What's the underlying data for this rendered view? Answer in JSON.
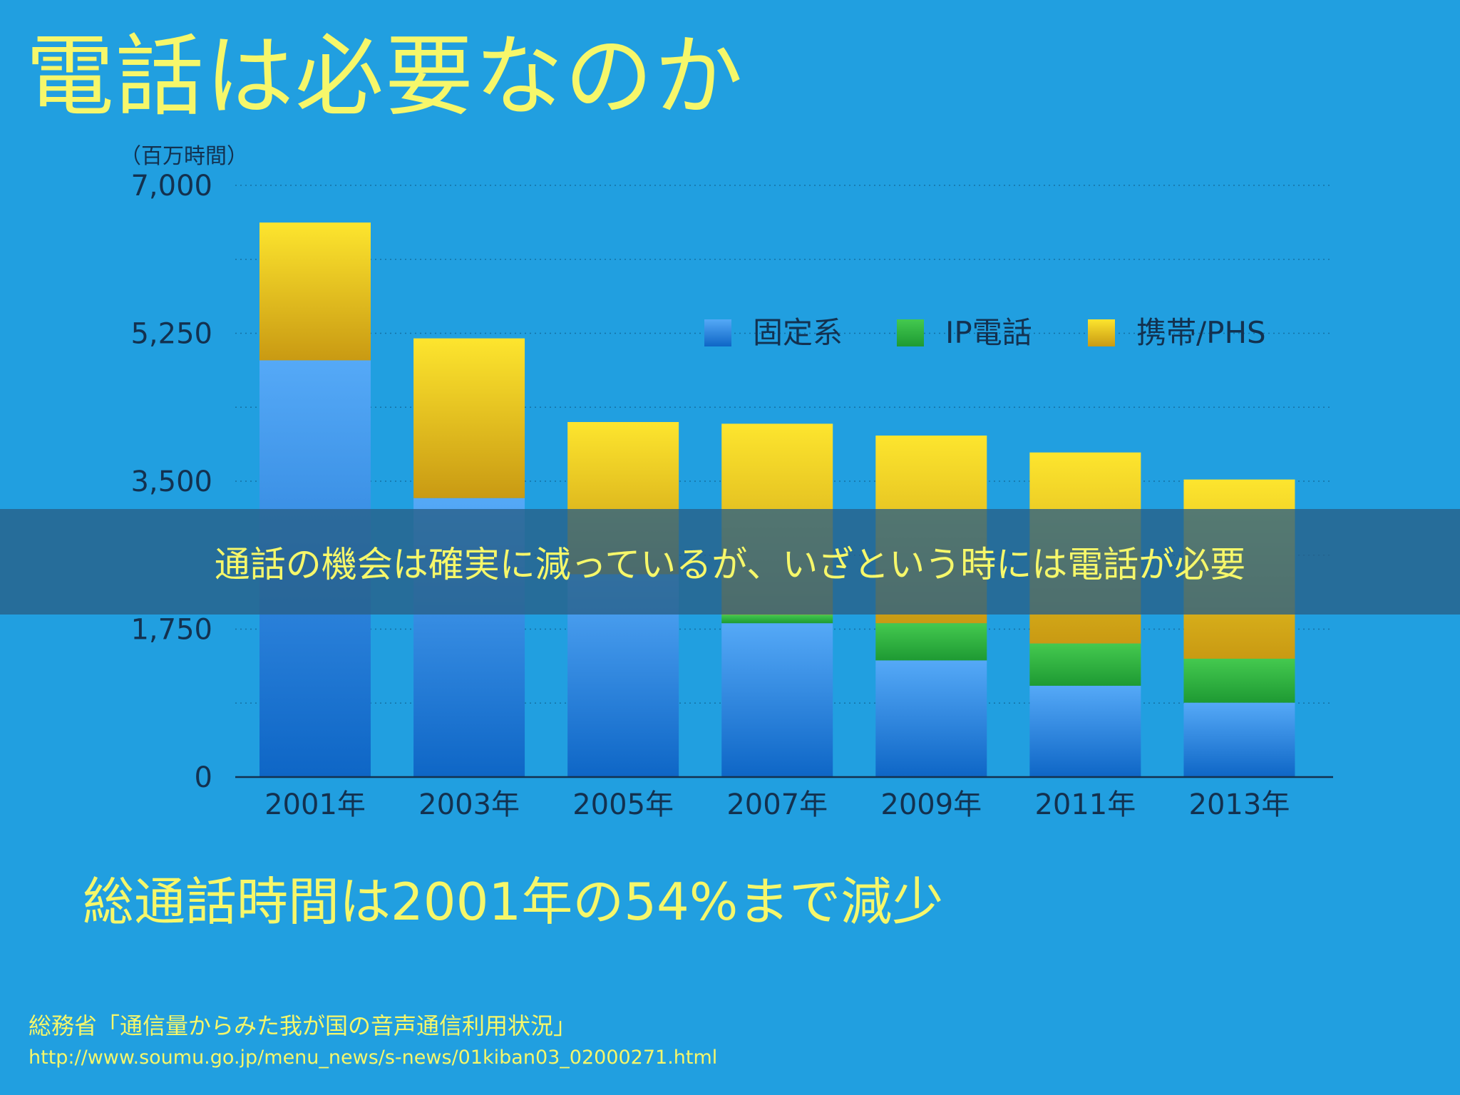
{
  "slide": {
    "title": "電話は必要なのか",
    "banner": "通話の機会は確実に減っているが、いざという時には電話が必要",
    "summary": "総通話時間は2001年の54%まで減少",
    "source": "総務省「通信量からみた我が国の音声通信利用状況」",
    "url": "http://www.soumu.go.jp/menu_news/s-news/01kiban03_02000271.html"
  },
  "chart_data": {
    "type": "bar",
    "stacked": true,
    "title": "",
    "ylabel": "（百万時間）",
    "xlabel": "",
    "categories": [
      "2001年",
      "2003年",
      "2005年",
      "2007年",
      "2009年",
      "2011年",
      "2013年"
    ],
    "ylim": [
      0,
      7000
    ],
    "yticks": [
      0,
      1750,
      3500,
      5250,
      7000
    ],
    "ytick_labels": [
      "0",
      "1,750",
      "3,500",
      "5,250",
      "7,000"
    ],
    "grid": true,
    "legend_position": "top-right",
    "series": [
      {
        "name": "固定系",
        "values": [
          4930,
          3300,
          2400,
          1820,
          1380,
          1080,
          880
        ],
        "color": "#3d95ea"
      },
      {
        "name": "IP電話",
        "values": [
          0,
          0,
          0,
          100,
          440,
          500,
          520
        ],
        "color": "#2fb344"
      },
      {
        "name": "携帯/PHS",
        "values": [
          1630,
          1890,
          1800,
          2260,
          2220,
          2260,
          2120
        ],
        "color": "#f2c81e"
      }
    ]
  }
}
